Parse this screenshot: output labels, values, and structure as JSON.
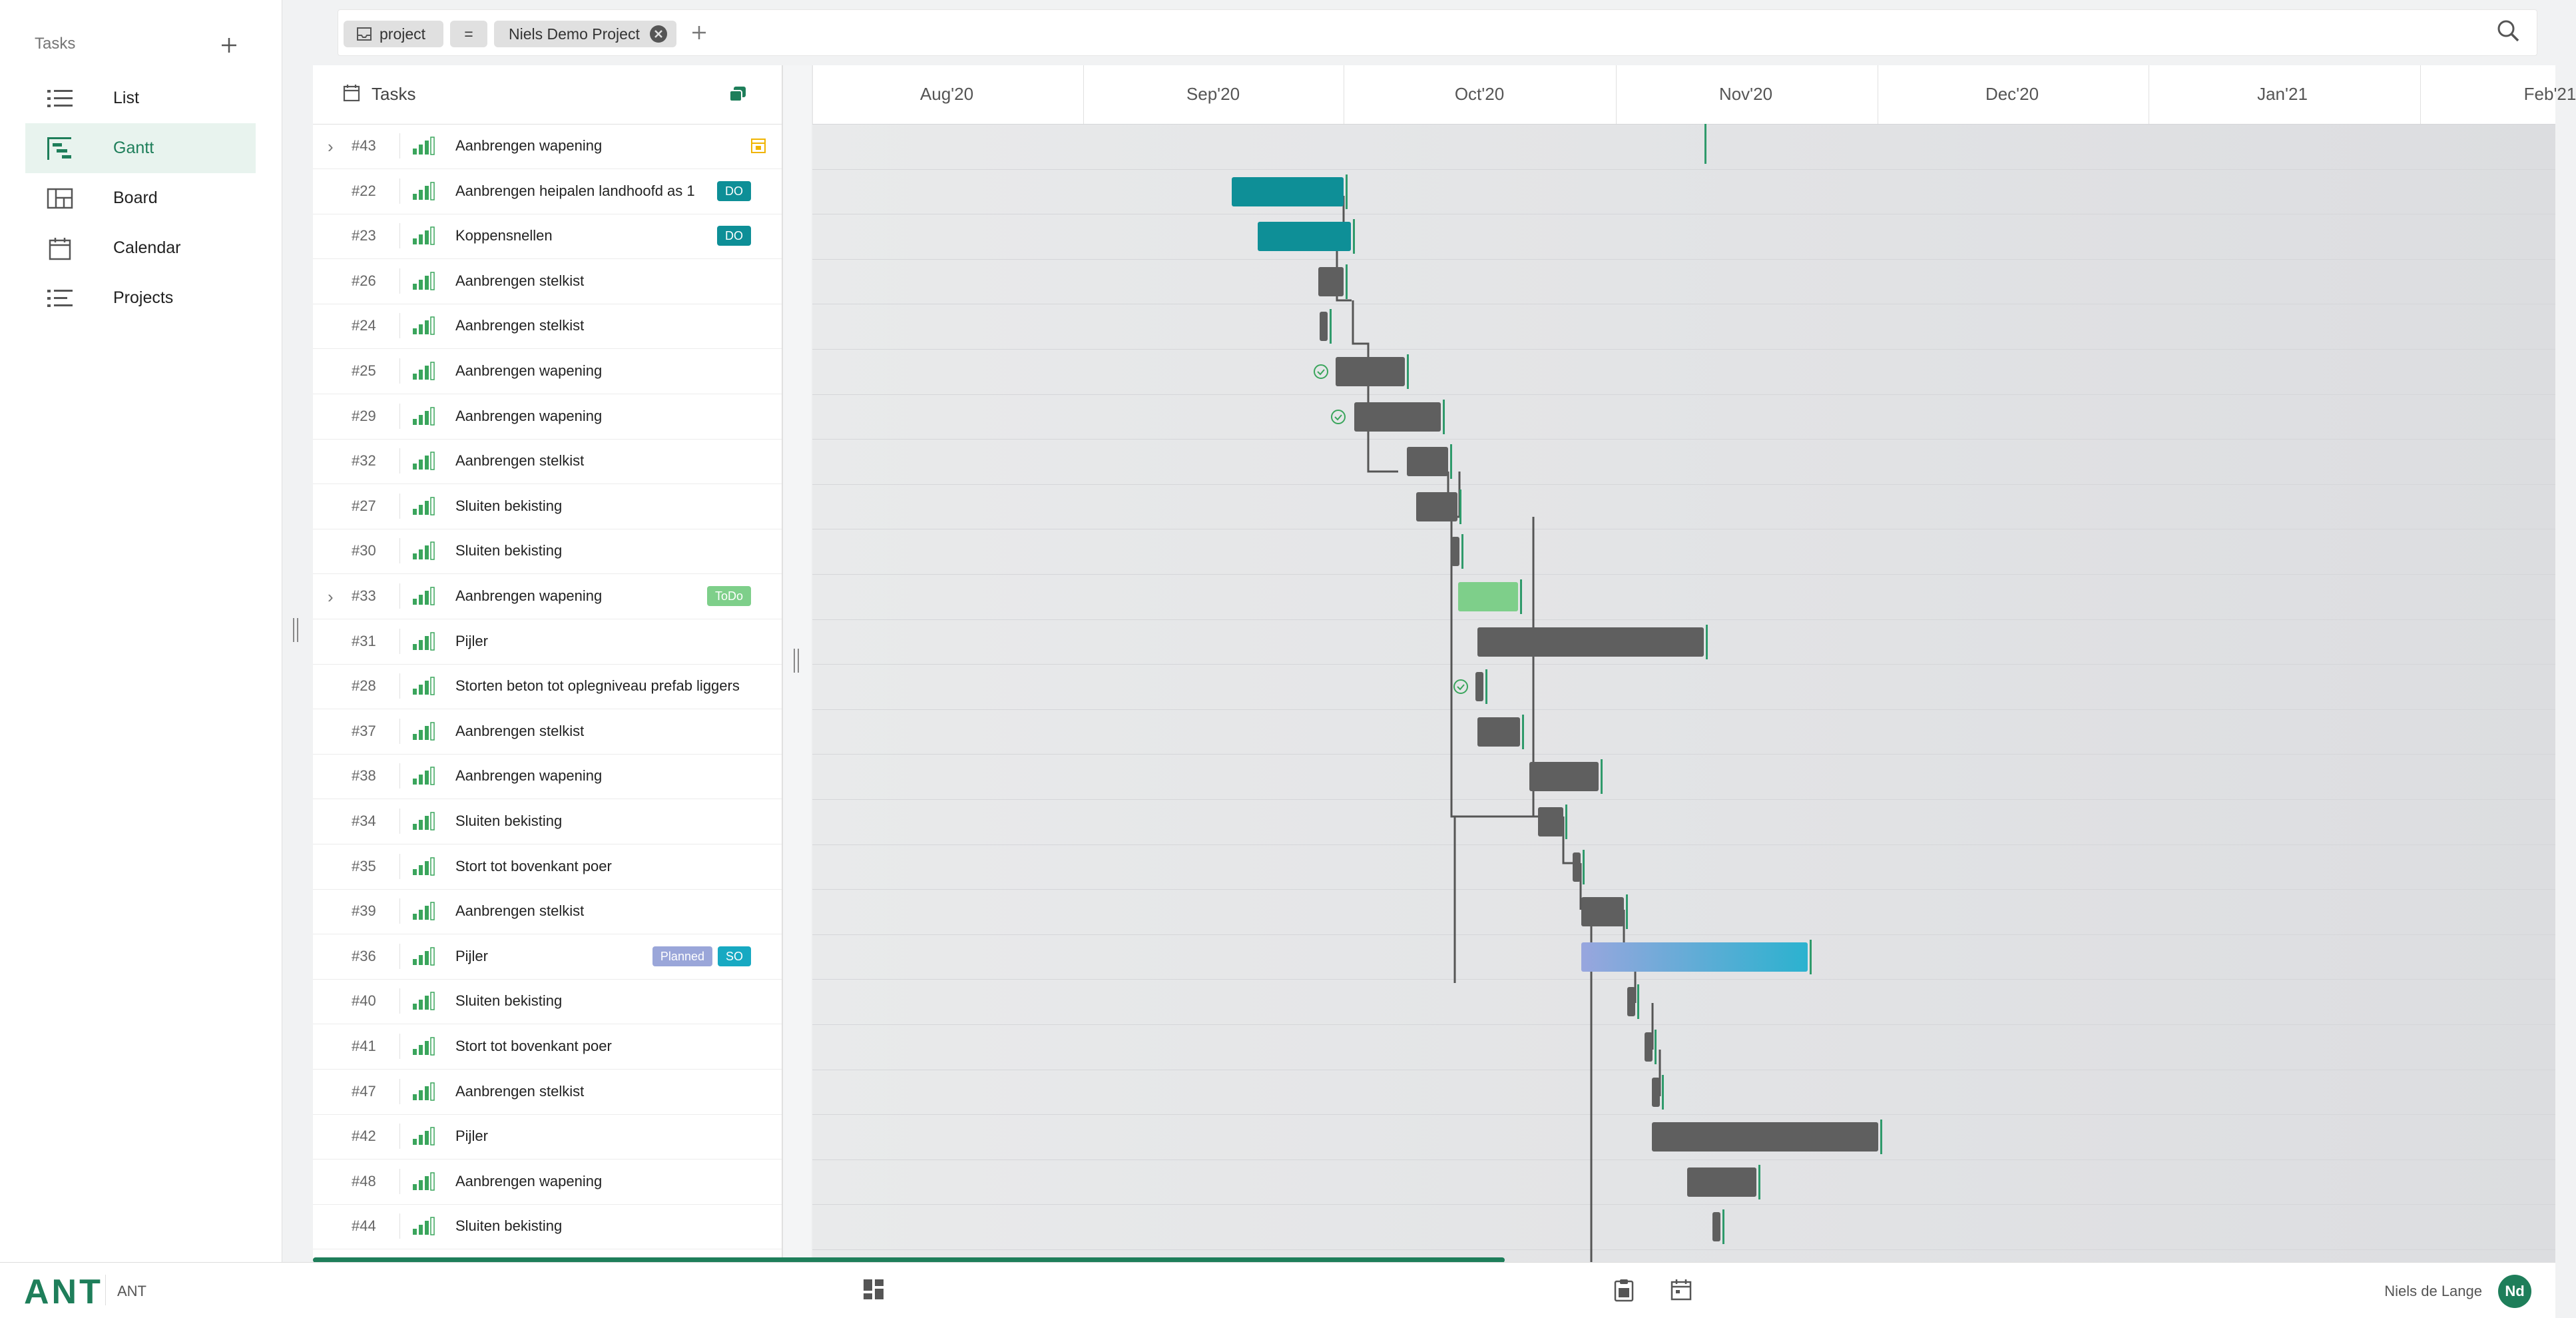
{
  "sidebar": {
    "header": "Tasks",
    "add_icon": "plus-icon",
    "items": [
      {
        "label": "List",
        "icon": "list-icon"
      },
      {
        "label": "Gantt",
        "icon": "gantt-icon",
        "active": true
      },
      {
        "label": "Board",
        "icon": "board-icon"
      },
      {
        "label": "Calendar",
        "icon": "calendar-icon"
      },
      {
        "label": "Projects",
        "icon": "projects-icon"
      }
    ]
  },
  "filter": {
    "field": "project",
    "operator": "=",
    "value": "Niels Demo Project"
  },
  "task_panel": {
    "title": "Tasks"
  },
  "tasks": [
    {
      "num": "#43",
      "name": "Aanbrengen wapening",
      "expandable": true,
      "flag": true,
      "tags": []
    },
    {
      "num": "#22",
      "name": "Aanbrengen heipalen landhoofd as 1",
      "tags": [
        {
          "label": "DO",
          "color": "#0e8f97"
        }
      ]
    },
    {
      "num": "#23",
      "name": "Koppensnellen",
      "tags": [
        {
          "label": "DO",
          "color": "#0e8f97"
        }
      ]
    },
    {
      "num": "#26",
      "name": "Aanbrengen stelkist",
      "tags": []
    },
    {
      "num": "#24",
      "name": "Aanbrengen stelkist",
      "tags": []
    },
    {
      "num": "#25",
      "name": "Aanbrengen wapening",
      "tags": []
    },
    {
      "num": "#29",
      "name": "Aanbrengen wapening",
      "tags": []
    },
    {
      "num": "#32",
      "name": "Aanbrengen stelkist",
      "tags": []
    },
    {
      "num": "#27",
      "name": "Sluiten bekisting",
      "tags": []
    },
    {
      "num": "#30",
      "name": "Sluiten bekisting",
      "tags": []
    },
    {
      "num": "#33",
      "name": "Aanbrengen wapening",
      "expandable": true,
      "tags": [
        {
          "label": "ToDo",
          "color": "#7ecf8a"
        }
      ]
    },
    {
      "num": "#31",
      "name": "Pijler",
      "tags": []
    },
    {
      "num": "#28",
      "name": "Storten beton tot oplegniveau prefab liggers",
      "tags": []
    },
    {
      "num": "#37",
      "name": "Aanbrengen stelkist",
      "tags": []
    },
    {
      "num": "#38",
      "name": "Aanbrengen wapening",
      "tags": []
    },
    {
      "num": "#34",
      "name": "Sluiten bekisting",
      "tags": []
    },
    {
      "num": "#35",
      "name": "Stort tot bovenkant poer",
      "tags": []
    },
    {
      "num": "#39",
      "name": "Aanbrengen stelkist",
      "tags": []
    },
    {
      "num": "#36",
      "name": "Pijler",
      "tags": [
        {
          "label": "Planned",
          "color": "#9aa6d9"
        },
        {
          "label": "SO",
          "color": "#17a9c2"
        }
      ]
    },
    {
      "num": "#40",
      "name": "Sluiten bekisting",
      "tags": []
    },
    {
      "num": "#41",
      "name": "Stort tot bovenkant poer",
      "tags": []
    },
    {
      "num": "#47",
      "name": "Aanbrengen stelkist",
      "tags": []
    },
    {
      "num": "#42",
      "name": "Pijler",
      "tags": []
    },
    {
      "num": "#48",
      "name": "Aanbrengen wapening",
      "tags": []
    },
    {
      "num": "#44",
      "name": "Sluiten bekisting",
      "tags": []
    }
  ],
  "timeline": {
    "months": [
      "Aug'20",
      "Sep'20",
      "Oct'20",
      "Nov'20",
      "Dec'20",
      "Jan'21",
      "Feb'21"
    ]
  },
  "bottombar": {
    "logo": "ANT",
    "app_name": "ANT",
    "user_name": "Niels de Lange",
    "user_initials": "Nd"
  },
  "colors": {
    "brand": "#1e7e5a",
    "teal": "#0e8f97",
    "todo": "#7ecf8a",
    "planned": "#9aa6d9",
    "so": "#17a9c2",
    "bar_gray": "#5f5f5f"
  }
}
